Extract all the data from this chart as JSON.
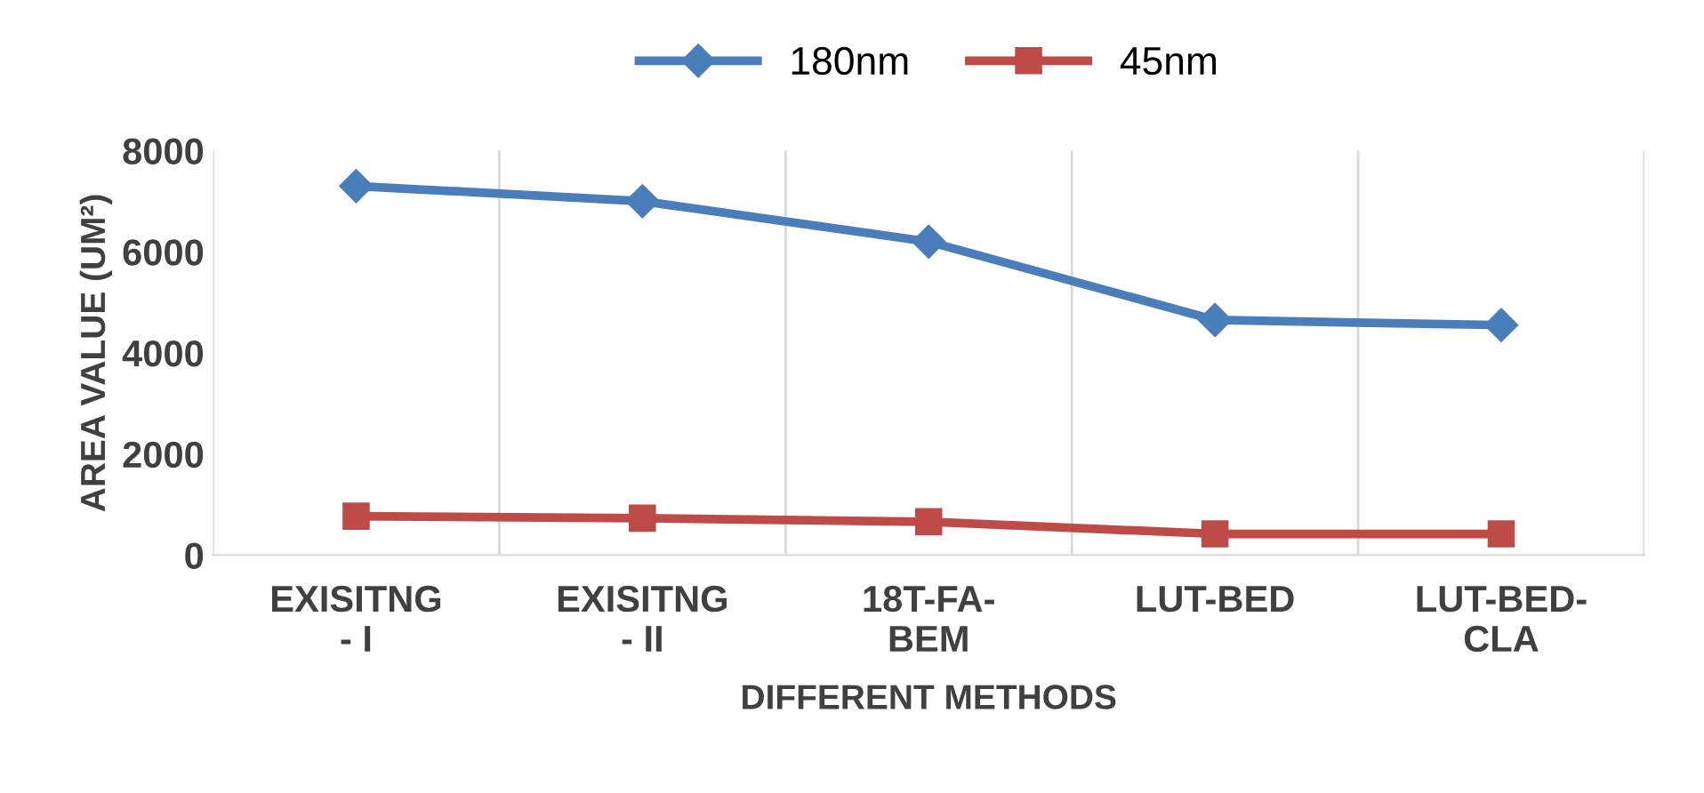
{
  "chart_data": {
    "type": "line",
    "xlabel": "DIFFERENT METHODS",
    "ylabel": "AREA VALUE (UM²)",
    "categories": [
      "EXISITNG\n- I",
      "EXISITNG\n- II",
      "18T-FA-\nBEM",
      "LUT-BED",
      "LUT-BED-\nCLA"
    ],
    "series": [
      {
        "name": "180nm",
        "color": "#4a7ebb",
        "marker": "diamond",
        "values": [
          7300,
          7000,
          6200,
          4650,
          4550
        ]
      },
      {
        "name": "45nm",
        "color": "#be4b48",
        "marker": "square",
        "values": [
          770,
          730,
          660,
          420,
          420
        ]
      }
    ],
    "ylim": [
      0,
      8000
    ],
    "yticks": [
      0,
      2000,
      4000,
      6000,
      8000
    ],
    "grid": "x",
    "legend": "top",
    "line_style": "solid"
  }
}
